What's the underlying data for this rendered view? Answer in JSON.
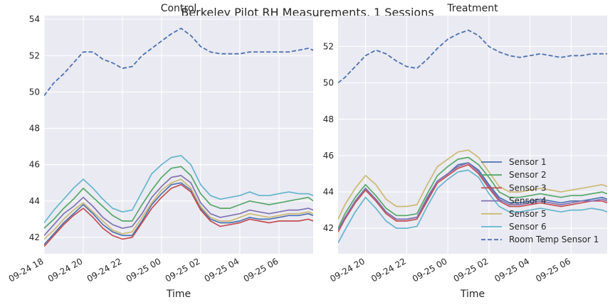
{
  "figure": {
    "title": "Berkeley Pilot RH Measurements, 1 Sessions"
  },
  "chart_data": [
    {
      "type": "line",
      "title": "Control",
      "xlabel": "Time",
      "ylabel": "",
      "xlim": [
        "2016-09-24 18:00",
        "2016-09-25 07:45"
      ],
      "ylim": [
        41.1,
        54.2
      ],
      "xticks": [
        {
          "t": "2016-09-24 18:00",
          "label": "09-24 18"
        },
        {
          "t": "2016-09-24 20:00",
          "label": "09-24 20"
        },
        {
          "t": "2016-09-24 22:00",
          "label": "09-24 22"
        },
        {
          "t": "2016-09-25 00:00",
          "label": "09-25 00"
        },
        {
          "t": "2016-09-25 02:00",
          "label": "09-25 02"
        },
        {
          "t": "2016-09-25 04:00",
          "label": "09-25 04"
        },
        {
          "t": "2016-09-25 06:00",
          "label": "09-25 06"
        }
      ],
      "yticks": [
        42,
        44,
        46,
        48,
        50,
        52,
        54
      ],
      "x": [
        "2016-09-24 18:00",
        "2016-09-24 18:30",
        "2016-09-24 19:00",
        "2016-09-24 19:30",
        "2016-09-24 20:00",
        "2016-09-24 20:30",
        "2016-09-24 21:00",
        "2016-09-24 21:30",
        "2016-09-24 22:00",
        "2016-09-24 22:30",
        "2016-09-24 23:00",
        "2016-09-24 23:30",
        "2016-09-25 00:00",
        "2016-09-25 00:30",
        "2016-09-25 01:00",
        "2016-09-25 01:30",
        "2016-09-25 02:00",
        "2016-09-25 02:30",
        "2016-09-25 03:00",
        "2016-09-25 03:30",
        "2016-09-25 04:00",
        "2016-09-25 04:30",
        "2016-09-25 05:00",
        "2016-09-25 05:30",
        "2016-09-25 06:00",
        "2016-09-25 06:30",
        "2016-09-25 07:00",
        "2016-09-25 07:30",
        "2016-09-25 07:45"
      ],
      "series": [
        {
          "name": "Sensor 1",
          "color": "#4c72b0",
          "dashed": false,
          "values": [
            41.6,
            42.2,
            42.8,
            43.3,
            43.8,
            43.3,
            42.7,
            42.3,
            42.1,
            42.1,
            42.9,
            43.8,
            44.4,
            44.9,
            45.0,
            44.6,
            43.6,
            43.0,
            42.8,
            42.8,
            42.9,
            43.1,
            43.0,
            43.0,
            43.1,
            43.2,
            43.2,
            43.3,
            43.2
          ]
        },
        {
          "name": "Sensor 2",
          "color": "#55a868",
          "dashed": false,
          "values": [
            42.5,
            43.0,
            43.6,
            44.1,
            44.7,
            44.2,
            43.7,
            43.2,
            42.9,
            42.9,
            43.8,
            44.6,
            45.3,
            45.8,
            45.9,
            45.4,
            44.4,
            43.8,
            43.6,
            43.6,
            43.8,
            44.0,
            43.9,
            43.8,
            43.9,
            44.0,
            44.1,
            44.2,
            44.0
          ]
        },
        {
          "name": "Sensor 3",
          "color": "#c44e52",
          "dashed": false,
          "values": [
            41.5,
            42.1,
            42.7,
            43.2,
            43.6,
            43.1,
            42.5,
            42.1,
            41.9,
            42.0,
            42.8,
            43.6,
            44.2,
            44.7,
            44.9,
            44.5,
            43.5,
            42.9,
            42.6,
            42.7,
            42.8,
            43.0,
            42.9,
            42.8,
            42.9,
            42.9,
            42.9,
            43.0,
            42.9
          ]
        },
        {
          "name": "Sensor 4",
          "color": "#8172b2",
          "dashed": false,
          "values": [
            42.1,
            42.7,
            43.3,
            43.7,
            44.2,
            43.7,
            43.1,
            42.7,
            42.5,
            42.6,
            43.3,
            44.2,
            44.8,
            45.3,
            45.4,
            45.0,
            43.9,
            43.3,
            43.1,
            43.2,
            43.3,
            43.5,
            43.4,
            43.3,
            43.4,
            43.5,
            43.5,
            43.6,
            43.5
          ]
        },
        {
          "name": "Sensor 5",
          "color": "#ccb974",
          "dashed": false,
          "values": [
            41.9,
            42.4,
            43.0,
            43.5,
            43.9,
            43.4,
            42.9,
            42.4,
            42.2,
            42.3,
            43.1,
            43.9,
            44.6,
            45.0,
            45.2,
            44.7,
            43.7,
            43.1,
            42.9,
            42.9,
            43.1,
            43.3,
            43.2,
            43.1,
            43.2,
            43.3,
            43.3,
            43.4,
            43.3
          ]
        },
        {
          "name": "Sensor 6",
          "color": "#64b5cd",
          "dashed": false,
          "values": [
            42.8,
            43.5,
            44.1,
            44.7,
            45.2,
            44.7,
            44.1,
            43.6,
            43.4,
            43.5,
            44.5,
            45.5,
            46.0,
            46.4,
            46.5,
            46.0,
            44.9,
            44.3,
            44.1,
            44.2,
            44.3,
            44.5,
            44.3,
            44.3,
            44.4,
            44.5,
            44.4,
            44.4,
            44.3
          ]
        },
        {
          "name": "Room Temp Sensor 1",
          "color": "#4c72b0",
          "dashed": true,
          "values": [
            49.8,
            50.5,
            51.0,
            51.6,
            52.2,
            52.2,
            51.8,
            51.6,
            51.3,
            51.4,
            52.0,
            52.4,
            52.8,
            53.2,
            53.5,
            53.1,
            52.5,
            52.2,
            52.1,
            52.1,
            52.1,
            52.2,
            52.2,
            52.2,
            52.2,
            52.2,
            52.3,
            52.4,
            52.3
          ]
        }
      ]
    },
    {
      "type": "line",
      "title": "Treatment",
      "xlabel": "Time",
      "ylabel": "",
      "xlim": [
        "2016-09-24 18:40",
        "2016-09-25 07:45"
      ],
      "ylim": [
        40.6,
        53.7
      ],
      "xticks": [
        {
          "t": "2016-09-24 20:00",
          "label": "09-24 20"
        },
        {
          "t": "2016-09-24 22:00",
          "label": "09-24 22"
        },
        {
          "t": "2016-09-25 00:00",
          "label": "09-25 00"
        },
        {
          "t": "2016-09-25 02:00",
          "label": "09-25 02"
        },
        {
          "t": "2016-09-25 04:00",
          "label": "09-25 04"
        },
        {
          "t": "2016-09-25 06:00",
          "label": "09-25 06"
        }
      ],
      "yticks": [
        42,
        44,
        46,
        48,
        50,
        52
      ],
      "x": [
        "2016-09-24 18:40",
        "2016-09-24 19:00",
        "2016-09-24 19:30",
        "2016-09-24 20:00",
        "2016-09-24 20:30",
        "2016-09-24 21:00",
        "2016-09-24 21:30",
        "2016-09-24 22:00",
        "2016-09-24 22:30",
        "2016-09-24 23:00",
        "2016-09-24 23:30",
        "2016-09-25 00:00",
        "2016-09-25 00:30",
        "2016-09-25 01:00",
        "2016-09-25 01:30",
        "2016-09-25 02:00",
        "2016-09-25 02:30",
        "2016-09-25 03:00",
        "2016-09-25 03:30",
        "2016-09-25 04:00",
        "2016-09-25 04:30",
        "2016-09-25 05:00",
        "2016-09-25 05:30",
        "2016-09-25 06:00",
        "2016-09-25 06:30",
        "2016-09-25 07:00",
        "2016-09-25 07:30",
        "2016-09-25 07:45"
      ],
      "series": [
        {
          "name": "Sensor 1",
          "color": "#4c72b0",
          "dashed": false,
          "values": [
            41.9,
            42.6,
            43.5,
            44.2,
            43.6,
            42.9,
            42.5,
            42.5,
            42.6,
            43.6,
            44.6,
            45.0,
            45.5,
            45.6,
            45.2,
            44.4,
            43.7,
            43.4,
            43.4,
            43.5,
            43.6,
            43.5,
            43.4,
            43.5,
            43.5,
            43.6,
            43.7,
            43.6
          ]
        },
        {
          "name": "Sensor 2",
          "color": "#55a868",
          "dashed": false,
          "values": [
            42.0,
            42.8,
            43.7,
            44.4,
            43.8,
            43.1,
            42.7,
            42.7,
            42.8,
            43.9,
            44.9,
            45.4,
            45.8,
            45.9,
            45.5,
            44.8,
            44.0,
            43.7,
            43.7,
            43.8,
            43.9,
            43.8,
            43.7,
            43.8,
            43.8,
            43.9,
            44.0,
            43.9
          ]
        },
        {
          "name": "Sensor 3",
          "color": "#c44e52",
          "dashed": false,
          "values": [
            41.8,
            42.5,
            43.4,
            44.1,
            43.5,
            42.8,
            42.4,
            42.4,
            42.5,
            43.5,
            44.5,
            44.9,
            45.3,
            45.5,
            45.0,
            44.2,
            43.5,
            43.2,
            43.2,
            43.3,
            43.4,
            43.3,
            43.2,
            43.3,
            43.4,
            43.5,
            43.5,
            43.4
          ]
        },
        {
          "name": "Sensor 4",
          "color": "#8172b2",
          "dashed": false,
          "values": [
            41.9,
            42.6,
            43.5,
            44.2,
            43.6,
            42.9,
            42.5,
            42.5,
            42.6,
            43.7,
            44.6,
            45.0,
            45.4,
            45.6,
            45.1,
            44.3,
            43.6,
            43.3,
            43.3,
            43.4,
            43.5,
            43.4,
            43.3,
            43.4,
            43.5,
            43.5,
            43.6,
            43.5
          ]
        },
        {
          "name": "Sensor 5",
          "color": "#ccb974",
          "dashed": false,
          "values": [
            42.5,
            43.3,
            44.2,
            44.9,
            44.4,
            43.6,
            43.2,
            43.2,
            43.3,
            44.4,
            45.4,
            45.8,
            46.2,
            46.3,
            45.9,
            45.1,
            44.3,
            44.0,
            44.0,
            44.1,
            44.2,
            44.1,
            44.0,
            44.1,
            44.2,
            44.3,
            44.4,
            44.3
          ]
        },
        {
          "name": "Sensor 6",
          "color": "#64b5cd",
          "dashed": false,
          "values": [
            41.2,
            41.9,
            42.9,
            43.7,
            43.1,
            42.4,
            42.0,
            42.0,
            42.1,
            43.2,
            44.2,
            44.7,
            45.1,
            45.2,
            44.8,
            43.9,
            43.2,
            42.9,
            42.9,
            43.0,
            43.1,
            43.0,
            42.9,
            43.0,
            43.0,
            43.1,
            43.0,
            42.9
          ]
        },
        {
          "name": "Room Temp Sensor 1",
          "color": "#4c72b0",
          "dashed": true,
          "values": [
            50.0,
            50.3,
            50.9,
            51.5,
            51.8,
            51.6,
            51.2,
            50.9,
            50.8,
            51.3,
            51.9,
            52.4,
            52.7,
            52.9,
            52.6,
            52.0,
            51.7,
            51.5,
            51.4,
            51.5,
            51.6,
            51.5,
            51.4,
            51.5,
            51.5,
            51.6,
            51.6,
            51.6
          ]
        }
      ]
    }
  ],
  "legend": {
    "placement": "lower-right",
    "entries": [
      "Sensor 1",
      "Sensor 2",
      "Sensor 3",
      "Sensor 4",
      "Sensor 5",
      "Sensor 6",
      "Room Temp Sensor 1"
    ]
  }
}
